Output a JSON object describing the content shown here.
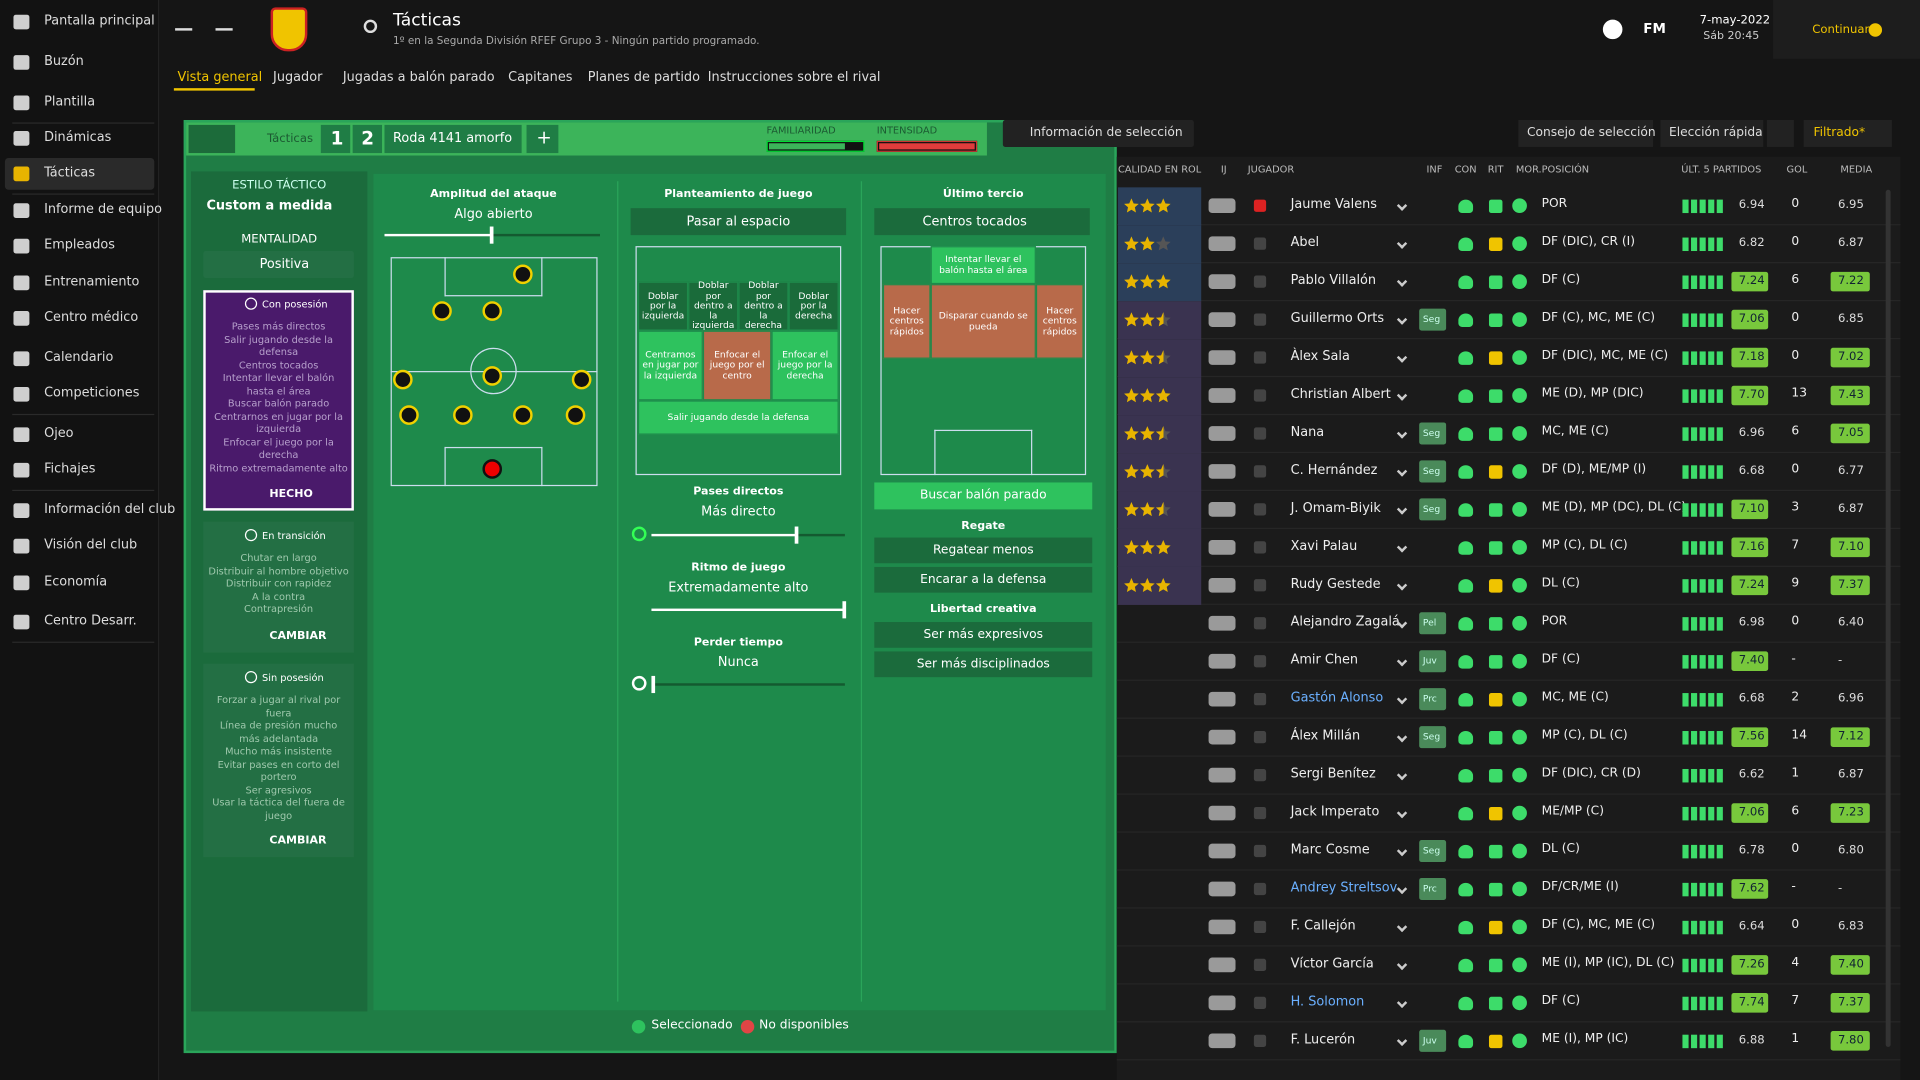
{
  "sidebar": {
    "items": [
      "Pantalla principal",
      "Buzón",
      "Plantilla",
      "Dinámicas",
      "Tácticas",
      "Informe de equipo",
      "Empleados",
      "Entrenamiento",
      "Centro médico",
      "Calendario",
      "Competiciones",
      "Ojeo",
      "Fichajes",
      "Información del club",
      "Visión del club",
      "Economía",
      "Centro Desarr."
    ]
  },
  "header": {
    "title": "Tácticas",
    "subtitle": "1º en la Segunda División RFEF Grupo 3 - Ningún partido programado.",
    "date": "7-may-2022",
    "time": "Sáb 20:45",
    "continue": "Continuar",
    "fm": "FM"
  },
  "tabs": [
    "Vista general",
    "Jugador",
    "Jugadas a balón parado",
    "Capitanes",
    "Planes de partido",
    "Instrucciones sobre el rival"
  ],
  "tactic_bar": {
    "label": "Tácticas",
    "slot1": "1",
    "slot2": "2",
    "name": "Roda 4141 amorfo",
    "add": "+",
    "familiarity": "FAMILIARIDAD",
    "intensity": "INTENSIDAD"
  },
  "style": {
    "label": "ESTILO TÁCTICO",
    "value": "Custom a medida",
    "mentality_label": "MENTALIDAD",
    "mentality": "Positiva"
  },
  "phases": [
    {
      "title": "Con posesión",
      "instructions": [
        "Pases más directos",
        "Salir jugando desde la defensa",
        "Centros tocados",
        "Intentar llevar el balón hasta el área",
        "Buscar balón parado",
        "Centrarnos en jugar por la izquierda",
        "Enfocar el juego por la derecha",
        "Ritmo extremadamente alto"
      ],
      "button": "HECHO"
    },
    {
      "title": "En transición",
      "instructions": [
        "Chutar en largo",
        "Distribuir al hombre objetivo",
        "Distribuir con rapidez",
        "A la contra",
        "Contrapresión"
      ],
      "button": "CAMBIAR"
    },
    {
      "title": "Sin posesión",
      "instructions": [
        "Forzar a jugar al rival por fuera",
        "Línea de presión mucho más adelantada",
        "Mucho más insistente",
        "Evitar pases en corto del portero",
        "Ser agresivos",
        "Usar la táctica del fuera de juego"
      ],
      "button": "CAMBIAR"
    }
  ],
  "width": {
    "label": "Amplitud del ataque",
    "value": "Algo abierto"
  },
  "approach": {
    "label": "Planteamiento de juego",
    "value": "Pasar al espacio",
    "zones": [
      "Doblar por la izquierda",
      "Doblar por dentro a la izquierda",
      "Doblar por dentro a la derecha",
      "Doblar por la derecha",
      "Centramos en jugar por la izquierda",
      "Enfocar el juego por el centro",
      "Enfocar el juego por la derecha",
      "Salir jugando desde la defensa"
    ]
  },
  "passing": {
    "label": "Pases directos",
    "value": "Más directo"
  },
  "tempo": {
    "label": "Ritmo de juego",
    "value": "Extremadamente alto"
  },
  "timewasting": {
    "label": "Perder tiempo",
    "value": "Nunca"
  },
  "final_third": {
    "label": "Último tercio",
    "value": "Centros tocados",
    "zones": [
      "Intentar llevar el balón hasta el área",
      "Hacer centros rápidos",
      "Disparar cuando se pueda",
      "Hacer centros rápidos"
    ],
    "set_pieces": "Buscar balón parado",
    "dribbling_label": "Regate",
    "dribbling": [
      "Regatear menos",
      "Encarar a la defensa"
    ],
    "freedom_label": "Libertad creativa",
    "freedom": [
      "Ser más expresivos",
      "Ser más disciplinados"
    ]
  },
  "legend": [
    "Seleccionado",
    "No disponibles"
  ],
  "toolbar": {
    "info": "Información de selección",
    "advice": "Consejo de selección",
    "quick": "Elección rápida",
    "filter": "Filtrado*"
  },
  "table": {
    "columns": [
      "CALIDAD EN ROL",
      "IJ",
      "JUGADOR",
      "INF",
      "CON",
      "RIT",
      "MOR.",
      "POSICIÓN",
      "ÚLT. 5 PARTIDOS",
      "GOL",
      "MEDIA"
    ],
    "rows": [
      {
        "stars": 3,
        "name": "Jaume Valens",
        "inf": null,
        "position": "POR",
        "last5": "6.94",
        "goals": "0",
        "average": "6.95"
      },
      {
        "stars": 2,
        "name": "Abel",
        "inf": null,
        "position": "DF (DIC), CR (I)",
        "last5": "6.82",
        "goals": "0",
        "average": "6.87"
      },
      {
        "stars": 3,
        "name": "Pablo Villalón",
        "inf": null,
        "position": "DF (C)",
        "last5": "7.24",
        "goals": "6",
        "average": "7.22"
      },
      {
        "stars": 2.5,
        "name": "Guillermo Orts",
        "inf": "Seg",
        "position": "DF (C), MC, ME (C)",
        "last5": "7.06",
        "goals": "0",
        "average": "6.85"
      },
      {
        "stars": 2.5,
        "name": "Àlex Sala",
        "inf": null,
        "position": "DF (DIC), MC, ME (C)",
        "last5": "7.18",
        "goals": "0",
        "average": "7.02"
      },
      {
        "stars": 3,
        "name": "Christian Albert",
        "inf": null,
        "position": "ME (D), MP (DIC)",
        "last5": "7.70",
        "goals": "13",
        "average": "7.43"
      },
      {
        "stars": 2.5,
        "name": "Nana",
        "inf": "Seg",
        "position": "MC, ME (C)",
        "last5": "6.96",
        "goals": "6",
        "average": "7.05"
      },
      {
        "stars": 2.5,
        "name": "C. Hernández",
        "inf": "Seg",
        "position": "DF (D), ME/MP (I)",
        "last5": "6.68",
        "goals": "0",
        "average": "6.77"
      },
      {
        "stars": 2.5,
        "name": "J. Omam-Biyik",
        "inf": "Seg",
        "position": "ME (D), MP (DC), DL (C)",
        "last5": "7.10",
        "goals": "3",
        "average": "6.87"
      },
      {
        "stars": 3,
        "name": "Xavi Palau",
        "inf": null,
        "position": "MP (C), DL (C)",
        "last5": "7.16",
        "goals": "7",
        "average": "7.10"
      },
      {
        "stars": 3,
        "name": "Rudy Gestede",
        "inf": null,
        "position": "DL (C)",
        "last5": "7.24",
        "goals": "9",
        "average": "7.37"
      },
      {
        "stars": null,
        "name": "Alejandro Zagalá",
        "inf": "Pel",
        "position": "POR",
        "last5": "6.98",
        "goals": "0",
        "average": "6.40"
      },
      {
        "stars": null,
        "name": "Amir Chen",
        "inf": "Juv",
        "position": "DF (C)",
        "last5": "7.40",
        "goals": "-",
        "average": "-"
      },
      {
        "stars": null,
        "name": "Gastón Alonso",
        "inf": "Prc",
        "position": "MC, ME (C)",
        "last5": "6.68",
        "goals": "2",
        "average": "6.96"
      },
      {
        "stars": null,
        "name": "Álex Millán",
        "inf": "Seg",
        "position": "MP (C), DL (C)",
        "last5": "7.56",
        "goals": "14",
        "average": "7.12"
      },
      {
        "stars": null,
        "name": "Sergi Benítez",
        "inf": null,
        "position": "DF (DIC), CR (D)",
        "last5": "6.62",
        "goals": "1",
        "average": "6.87"
      },
      {
        "stars": null,
        "name": "Jack Imperato",
        "inf": null,
        "position": "ME/MP (C)",
        "last5": "7.06",
        "goals": "6",
        "average": "7.23"
      },
      {
        "stars": null,
        "name": "Marc Cosme",
        "inf": "Seg",
        "position": "DL (C)",
        "last5": "6.78",
        "goals": "0",
        "average": "6.80"
      },
      {
        "stars": null,
        "name": "Andrey Streltsov",
        "inf": "Prc",
        "position": "DF/CR/ME (I)",
        "last5": "7.62",
        "goals": "-",
        "average": "-"
      },
      {
        "stars": null,
        "name": "F. Callejón",
        "inf": null,
        "position": "DF (C), MC, ME (C)",
        "last5": "6.64",
        "goals": "0",
        "average": "6.83"
      },
      {
        "stars": null,
        "name": "Víctor García",
        "inf": null,
        "position": "ME (I), MP (IC), DL (C)",
        "last5": "7.26",
        "goals": "4",
        "average": "7.40"
      },
      {
        "stars": null,
        "name": "H. Solomon",
        "inf": null,
        "position": "DF (C)",
        "last5": "7.74",
        "goals": "7",
        "average": "7.37"
      },
      {
        "stars": null,
        "name": "F. Lucerón",
        "inf": "Juv",
        "position": "ME (I), MP (IC)",
        "last5": "6.88",
        "goals": "1",
        "average": "7.80"
      }
    ]
  }
}
